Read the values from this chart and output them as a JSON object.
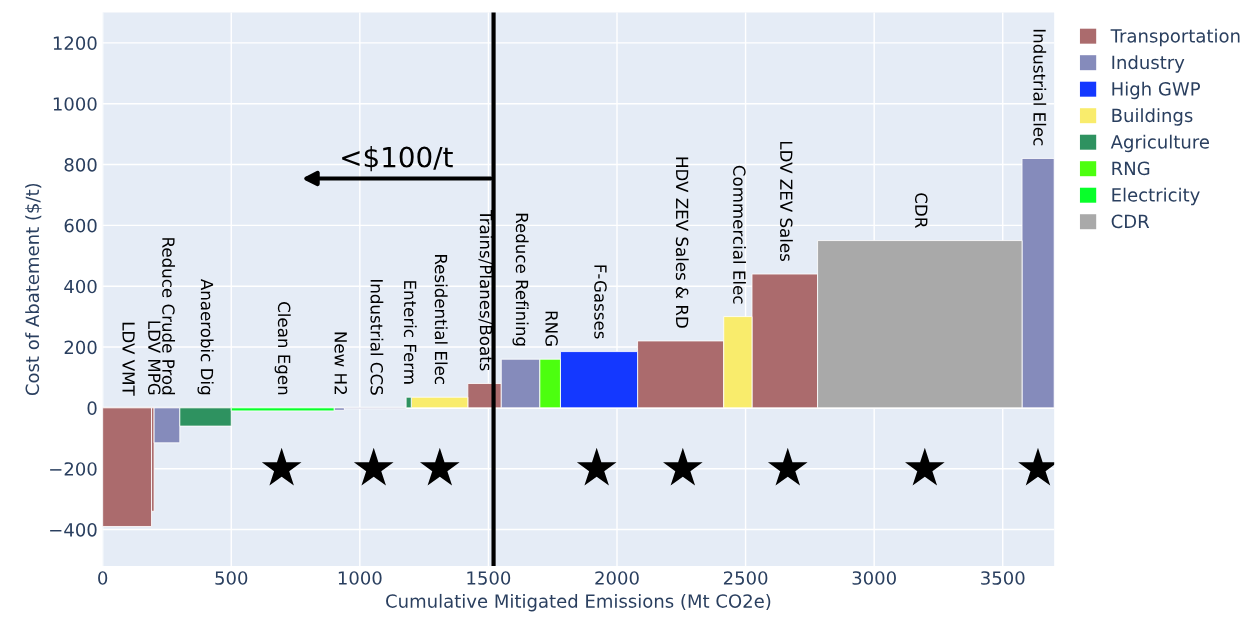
{
  "chart_data": {
    "type": "area",
    "xlabel": "Cumulative Mitigated Emissions (Mt CO2e)",
    "ylabel": "Cost of Abatement ($/t)",
    "xlim": [
      0,
      3700
    ],
    "xticks": [
      0,
      500,
      1000,
      1500,
      2000,
      2500,
      3000,
      3500
    ],
    "ylim": [
      -520,
      1300
    ],
    "yticks": [
      -400,
      -200,
      0,
      200,
      400,
      600,
      800,
      1000,
      1200
    ],
    "grid": true,
    "legend": "top right",
    "series": [
      {
        "name": "Transportation",
        "color": "#ab6b6d",
        "x": [
          0,
          190,
          null,
          190,
          200,
          null,
          1420,
          1550,
          null,
          2080,
          2415,
          null,
          2525,
          2780
        ],
        "values": [
          -390,
          -390,
          null,
          -340,
          -340,
          null,
          80,
          80,
          null,
          220,
          220,
          null,
          440,
          440
        ]
      },
      {
        "name": "Industry",
        "color": "#858bbb",
        "x": [
          200,
          300,
          null,
          900,
          940,
          null,
          940,
          1180,
          null,
          1550,
          1700,
          null,
          3575,
          3700
        ],
        "values": [
          -115,
          -115,
          null,
          -8,
          -8,
          null,
          -3,
          -3,
          null,
          160,
          160,
          null,
          820,
          820
        ]
      },
      {
        "name": "High GWP",
        "color": "#1438ff",
        "x": [
          1780,
          2080
        ],
        "values": [
          185,
          185
        ]
      },
      {
        "name": "Buildings",
        "color": "#f9ec6c",
        "x": [
          1200,
          1420,
          null,
          2415,
          2525
        ],
        "values": [
          35,
          35,
          null,
          300,
          300
        ]
      },
      {
        "name": "Agriculture",
        "color": "#2e9260",
        "x": [
          300,
          500,
          null,
          1180,
          1200
        ],
        "values": [
          -60,
          -60,
          null,
          35,
          35
        ]
      },
      {
        "name": "RNG",
        "color": "#4cff0f",
        "x": [
          1700,
          1780
        ],
        "values": [
          160,
          160
        ]
      },
      {
        "name": "Electricity",
        "color": "#08ff2a",
        "x": [
          500,
          900
        ],
        "values": [
          -10,
          -10
        ]
      },
      {
        "name": "CDR",
        "color": "#a9a9a9",
        "x": [
          2780,
          3575
        ],
        "values": [
          550,
          550
        ]
      },
      {
        "type": "scatter",
        "color": "#000000",
        "marker": "star",
        "x": [
          696,
          1054,
          1311,
          1921,
          2256,
          2664,
          3197,
          3637
        ],
        "values": [
          -200,
          -200,
          -200,
          -200,
          -200,
          -200,
          -200,
          -200
        ]
      }
    ],
    "ref_lines": [
      {
        "axis": "x",
        "value": 1520,
        "color": "#000000",
        "label": "<$100/t"
      }
    ],
    "annotations": [
      "LDV VMT",
      "LDV MPG",
      "Reduce Crude Prod",
      "Anaerobic Dig",
      "Clean Egen",
      "New H2",
      "Industrial CCS",
      "Enteric Ferm",
      "Residential Elec",
      "Trains/Planes/Boats",
      "Reduce Refining",
      "RNG",
      "F-Gasses",
      "HDV ZEV Sales & RD",
      "Commercial Elec",
      "LDV ZEV Sales",
      "CDR",
      "Industrial Elec"
    ]
  }
}
